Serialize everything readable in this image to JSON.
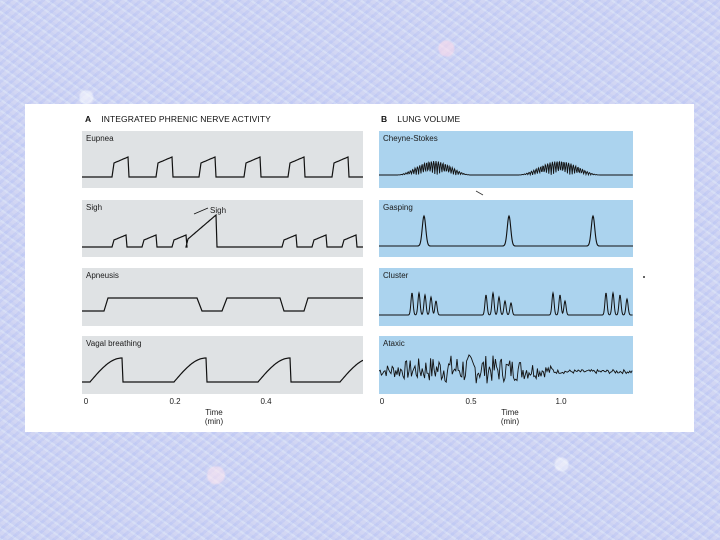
{
  "panel_a": {
    "letter": "A",
    "title": "INTEGRATED PHRENIC NERVE ACTIVITY",
    "traces": [
      {
        "label": "Eupnea"
      },
      {
        "label": "Sigh",
        "annotation": "Sigh"
      },
      {
        "label": "Apneusis"
      },
      {
        "label": "Vagal breathing"
      }
    ],
    "axis": {
      "ticks": [
        "0",
        "0.2",
        "0.4"
      ],
      "title_line1": "Time",
      "title_line2": "(min)"
    }
  },
  "panel_b": {
    "letter": "B",
    "title": "LUNG VOLUME",
    "traces": [
      {
        "label": "Cheyne-Stokes"
      },
      {
        "label": "Gasping"
      },
      {
        "label": "Cluster"
      },
      {
        "label": "Ataxic"
      }
    ],
    "axis": {
      "ticks": [
        "0",
        "0.5",
        "1.0"
      ],
      "title_line1": "Time",
      "title_line2": "(min)"
    }
  },
  "colors": {
    "left_strip": "#dfe2e4",
    "right_strip": "#abd3ee",
    "trace": "#111111"
  }
}
